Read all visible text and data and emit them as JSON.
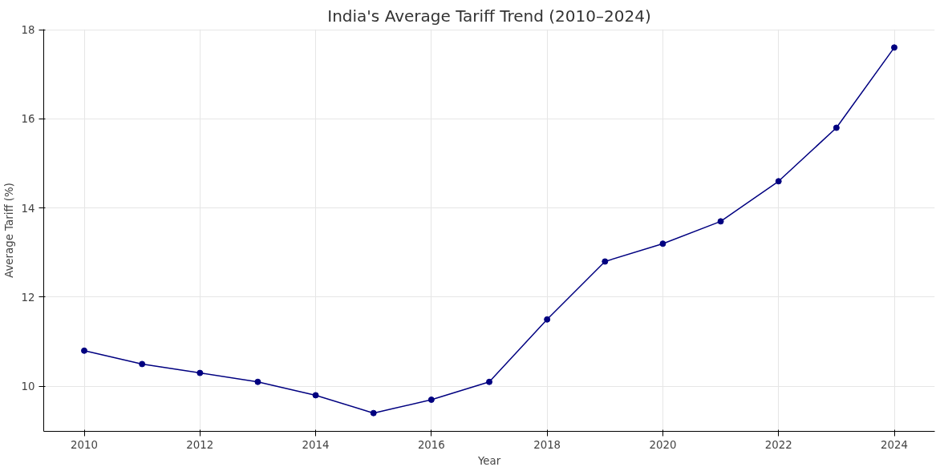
{
  "chart_data": {
    "type": "line",
    "title": "India's Average Tariff Trend (2010–2024)",
    "xlabel": "Year",
    "ylabel": "Average Tariff (%)",
    "x": [
      2010,
      2011,
      2012,
      2013,
      2014,
      2015,
      2016,
      2017,
      2018,
      2019,
      2020,
      2021,
      2022,
      2023,
      2024
    ],
    "series": [
      {
        "color": "#000080",
        "values": [
          10.8,
          10.5,
          10.3,
          10.1,
          9.8,
          9.4,
          9.7,
          10.1,
          11.5,
          12.8,
          13.2,
          13.7,
          14.6,
          15.8,
          17.6
        ]
      }
    ],
    "xlim": [
      2009.3,
      2024.7
    ],
    "ylim": [
      8.99,
      18.01
    ],
    "xticks": [
      2010,
      2012,
      2014,
      2016,
      2018,
      2020,
      2022,
      2024
    ],
    "yticks": [
      10,
      12,
      14,
      16,
      18
    ],
    "grid": true,
    "marker": "circle",
    "line_style": "solid"
  }
}
